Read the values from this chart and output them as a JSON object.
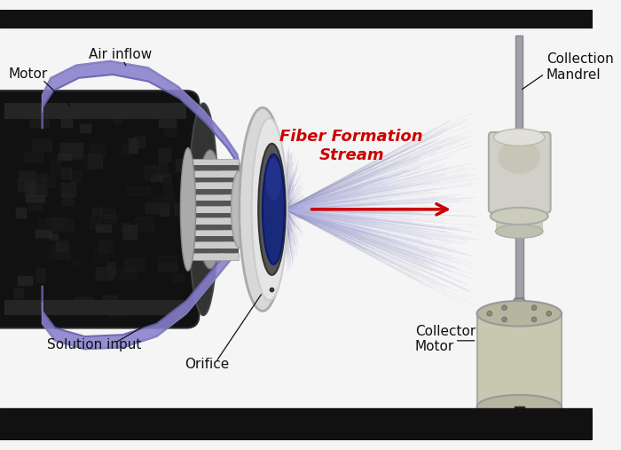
{
  "background_color": "#f5f5f5",
  "border_color": "#111111",
  "labels": {
    "motor": "Motor",
    "air_inflow": "Air inflow",
    "solution_input": "Solution input",
    "orifice": "Orifice",
    "fiber_formation": "Fiber Formation\nStream",
    "collection_mandrel": "Collection\nMandrel",
    "collector_motor": "Collector\nMotor"
  },
  "label_color": "#111111",
  "fiber_label_color": "#cc0000",
  "arrow_color": "#cc0000",
  "motor_dark": "#111111",
  "motor_mid": "#222222",
  "motor_end": "#3a3a3a",
  "tube_fill": "#8880cc",
  "tube_edge": "#6660aa",
  "tube_highlight": "#aaa8dd",
  "disk_outer": "#d5d5d5",
  "disk_mid": "#e8e8e8",
  "disk_inner_ring": "#28288a",
  "spindle_silver": "#b8b8b8",
  "fiber_color": "#9999cc",
  "fiber_color2": "#aaaadd",
  "mandrel_body_color": "#d0d0c8",
  "mandrel_shaft_color": "#a0a0a8",
  "collector_body_color": "#c8c8b0",
  "collector_cap_color": "#b5b5a0",
  "collector_shaft_color": "#888890",
  "collector_bottom_color": "#333333"
}
